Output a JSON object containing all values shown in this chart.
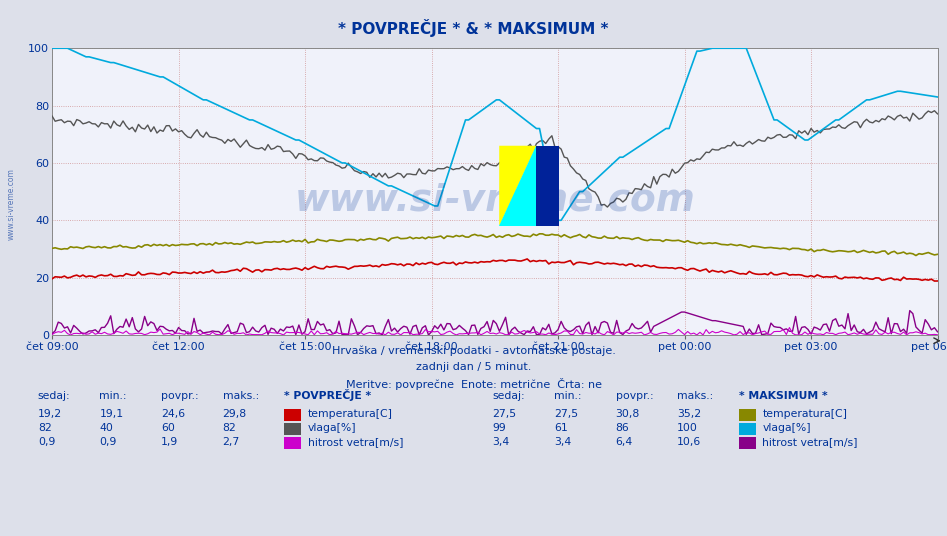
{
  "title": "* POVPREČJE * & * MAKSIMUM *",
  "subtitle1": "Hrvaška / vremenski podatki - avtomatske postaje.",
  "subtitle2": "zadnji dan / 5 minut.",
  "subtitle3": "Meritve: povprečne  Enote: metrične  Črta: ne",
  "xlabel_ticks": [
    "čet 09:00",
    "čet 12:00",
    "čet 15:00",
    "čet 18:00",
    "čet 21:00",
    "pet 00:00",
    "pet 03:00",
    "pet 06:00"
  ],
  "ylabel_ticks": [
    0,
    20,
    40,
    60,
    80,
    100
  ],
  "ylim": [
    0,
    100
  ],
  "bg_color": "#dde0ea",
  "plot_bg_color": "#f0f2fa",
  "grid_color_v": "#cc8888",
  "grid_color_h": "#cc8888",
  "watermark_text": "www.si-vreme.com",
  "side_watermark": "www.si-vreme.com",
  "avg_temp_color": "#cc0000",
  "avg_hum_color": "#555555",
  "avg_wind_color": "#cc00cc",
  "max_temp_color": "#888800",
  "max_hum_color": "#00aadd",
  "max_wind_color": "#880088",
  "text_color": "#003399",
  "n_points": 288
}
